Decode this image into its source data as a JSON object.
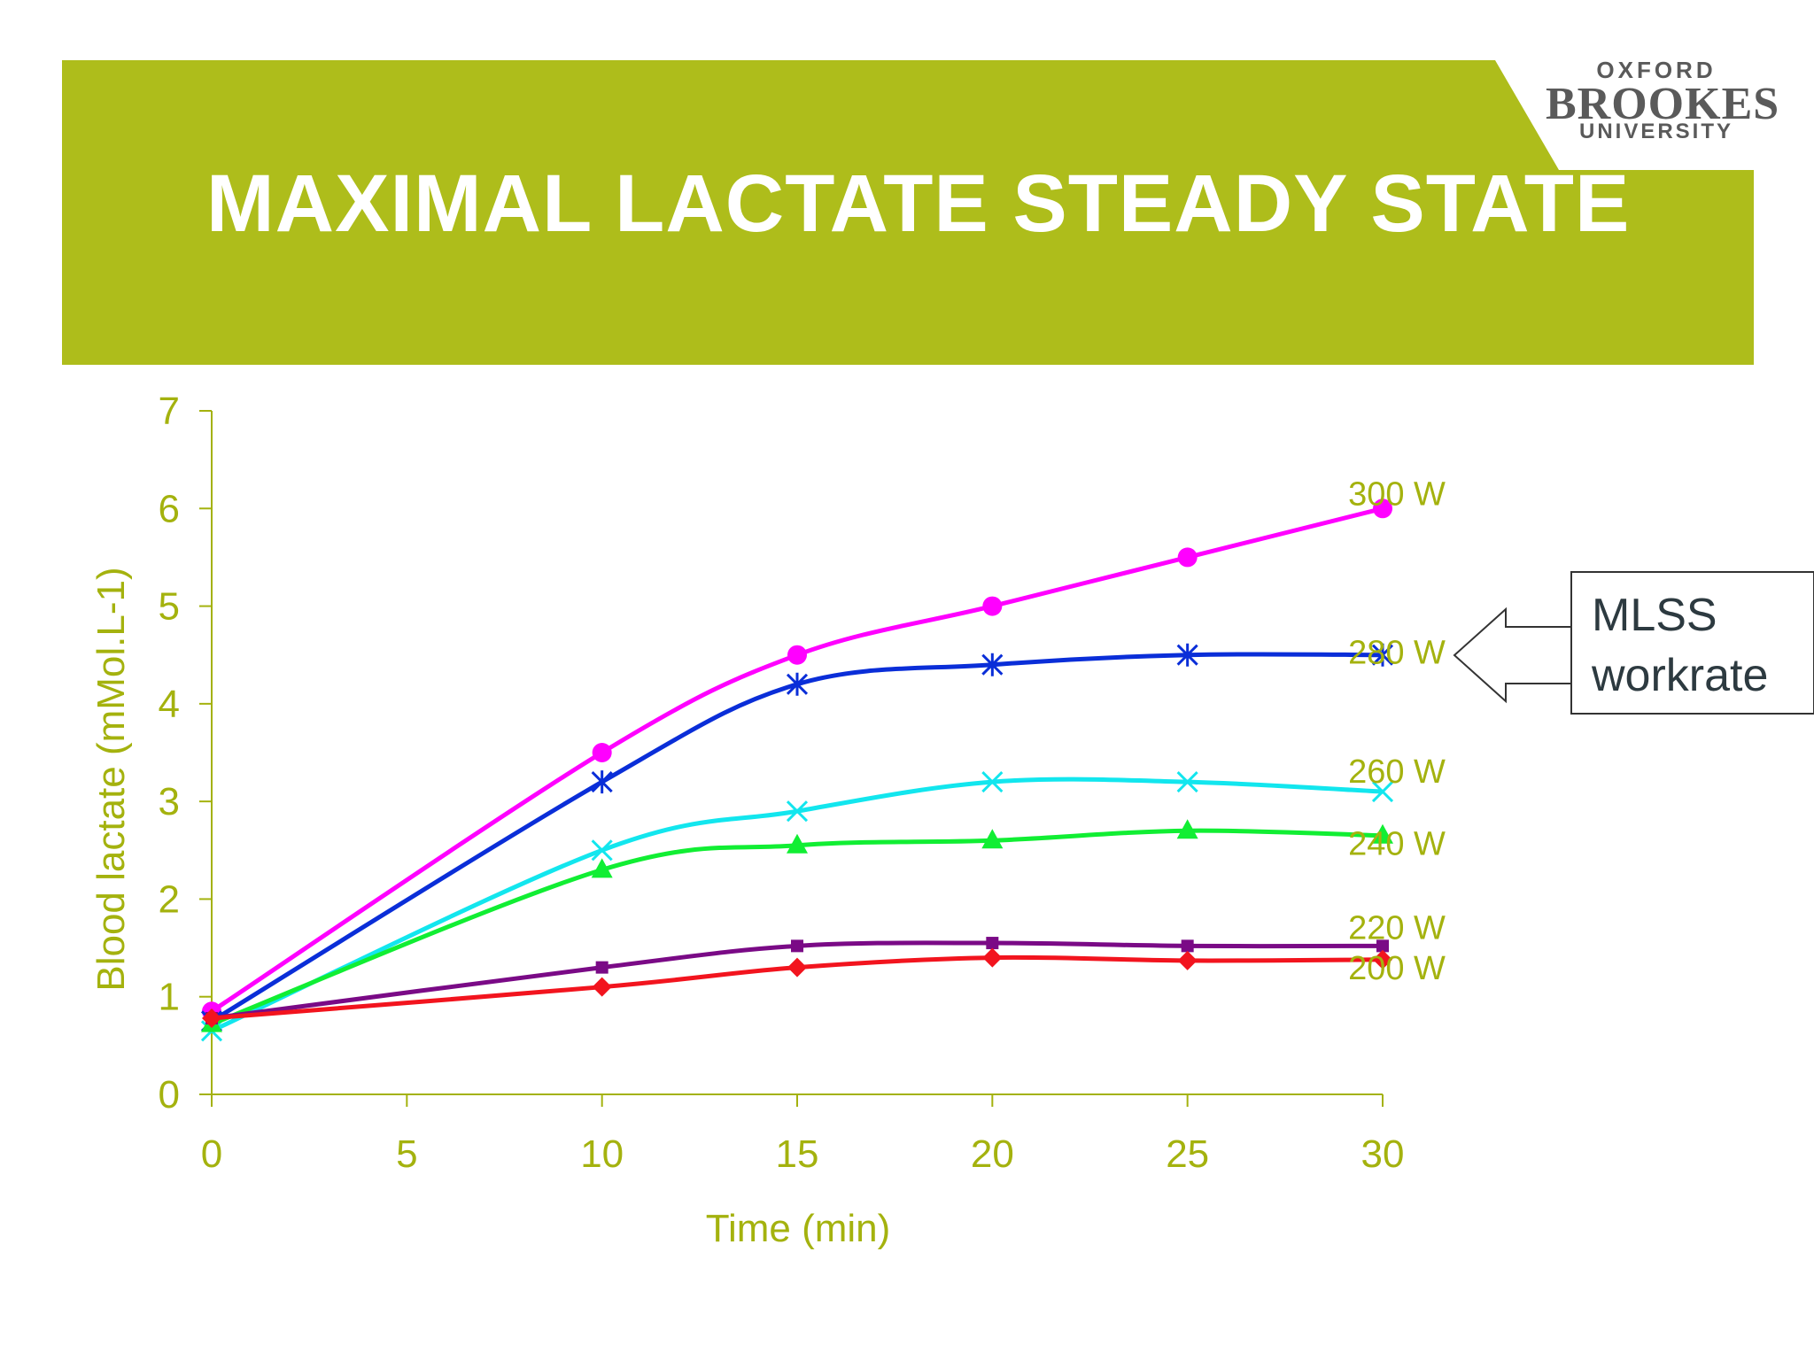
{
  "slide": {
    "title": "MAXIMAL LACTATE STEADY STATE",
    "banner_color": "#aebd1b",
    "logo": {
      "line1": "OXFORD",
      "line2": "BROOKES",
      "line3": "UNIVERSITY"
    }
  },
  "chart_data": {
    "type": "line",
    "xlabel": "Time (min)",
    "ylabel": "Blood lactate (mMol.L-1)",
    "xlim": [
      0,
      30
    ],
    "ylim": [
      0,
      7
    ],
    "xticks": [
      0,
      5,
      10,
      15,
      20,
      25,
      30
    ],
    "yticks": [
      0,
      1,
      2,
      3,
      4,
      5,
      6,
      7
    ],
    "grid": false,
    "legend": "none",
    "x": [
      0,
      10,
      15,
      20,
      25,
      30
    ],
    "series": [
      {
        "name": "300 W",
        "color": "#ff00ff",
        "marker": "circle",
        "values": [
          0.85,
          3.5,
          4.5,
          5.0,
          5.5,
          6.0
        ]
      },
      {
        "name": "280 W",
        "color": "#0a2ed8",
        "marker": "star",
        "values": [
          0.75,
          3.2,
          4.2,
          4.4,
          4.5,
          4.5
        ]
      },
      {
        "name": "260 W",
        "color": "#12e6ee",
        "marker": "x",
        "values": [
          0.65,
          2.5,
          2.9,
          3.2,
          3.2,
          3.1
        ]
      },
      {
        "name": "240 W",
        "color": "#11ee33",
        "marker": "triangle",
        "values": [
          0.72,
          2.3,
          2.55,
          2.6,
          2.7,
          2.65
        ]
      },
      {
        "name": "220 W",
        "color": "#7a0a86",
        "marker": "square",
        "values": [
          0.78,
          1.3,
          1.52,
          1.55,
          1.52,
          1.52
        ]
      },
      {
        "name": "200 W",
        "color": "#f2141e",
        "marker": "diamond",
        "values": [
          0.78,
          1.1,
          1.3,
          1.4,
          1.37,
          1.38
        ]
      }
    ],
    "annotation": {
      "text_line1": "MLSS",
      "text_line2": "workrate",
      "points_to": "280 W"
    }
  }
}
